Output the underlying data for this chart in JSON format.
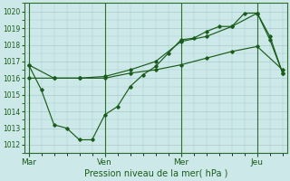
{
  "bg_color": "#cce8e8",
  "grid_color": "#aacccc",
  "line_color": "#1a5c1a",
  "marker_color": "#1a5c1a",
  "xlabel": "Pression niveau de la mer( hPa )",
  "ylim": [
    1011.5,
    1020.5
  ],
  "yticks": [
    1012,
    1013,
    1014,
    1015,
    1016,
    1017,
    1018,
    1019,
    1020
  ],
  "xtick_labels": [
    "Mar",
    "Ven",
    "Mer",
    "Jeu"
  ],
  "xtick_positions": [
    0,
    9,
    18,
    27
  ],
  "vlines": [
    0,
    9,
    18,
    27
  ],
  "xlim": [
    -0.5,
    30.5
  ],
  "series1": {
    "x": [
      0,
      3,
      6,
      9,
      12,
      15,
      18,
      21,
      24,
      27,
      30
    ],
    "y": [
      1016.0,
      1016.0,
      1016.0,
      1016.0,
      1016.3,
      1016.5,
      1016.8,
      1017.2,
      1017.6,
      1017.9,
      1016.5
    ]
  },
  "series2": {
    "x": [
      0,
      1.5,
      3,
      4.5,
      6,
      7.5,
      9,
      10.5,
      12,
      13.5,
      15,
      16.5,
      18,
      19.5,
      21,
      22.5,
      24,
      25.5,
      27,
      28.5,
      30
    ],
    "y": [
      1016.8,
      1015.3,
      1013.2,
      1013.0,
      1012.3,
      1012.3,
      1013.8,
      1014.3,
      1015.5,
      1016.2,
      1016.7,
      1017.5,
      1018.3,
      1018.4,
      1018.8,
      1019.1,
      1019.1,
      1019.9,
      1019.9,
      1018.3,
      1016.3
    ]
  },
  "series3": {
    "x": [
      0,
      3,
      6,
      9,
      12,
      15,
      18,
      21,
      24,
      27,
      28.5,
      30
    ],
    "y": [
      1016.8,
      1016.0,
      1016.0,
      1016.1,
      1016.5,
      1017.0,
      1018.2,
      1018.5,
      1019.1,
      1019.9,
      1018.5,
      1016.3
    ]
  }
}
